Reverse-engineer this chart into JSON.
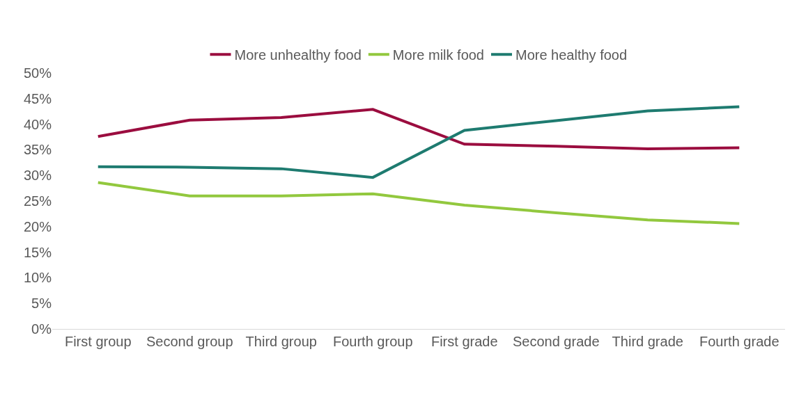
{
  "chart_data": {
    "type": "line",
    "categories": [
      "First group",
      "Second group",
      "Third group",
      "Fourth group",
      "First grade",
      "Second grade",
      "Third grade",
      "Fourth grade"
    ],
    "series": [
      {
        "name": "More unhealthy food",
        "color": "#9b0d3f",
        "values": [
          37.6,
          40.8,
          41.3,
          42.9,
          36.1,
          35.7,
          35.2,
          35.4
        ]
      },
      {
        "name": "More milk food",
        "color": "#92c83e",
        "values": [
          28.6,
          26.0,
          26.0,
          26.4,
          24.2,
          22.7,
          21.3,
          20.6
        ]
      },
      {
        "name": "More healthy food",
        "color": "#1e7b70",
        "values": [
          31.7,
          31.6,
          31.3,
          29.6,
          38.8,
          40.7,
          42.6,
          43.4
        ]
      }
    ],
    "ylim": [
      0,
      50
    ],
    "yticks": [
      {
        "value": 0,
        "label": "0%"
      },
      {
        "value": 5,
        "label": "5%"
      },
      {
        "value": 10,
        "label": "10%"
      },
      {
        "value": 15,
        "label": "15%"
      },
      {
        "value": 20,
        "label": "20%"
      },
      {
        "value": 25,
        "label": "25%"
      },
      {
        "value": 30,
        "label": "30%"
      },
      {
        "value": 35,
        "label": "35%"
      },
      {
        "value": 40,
        "label": "40%"
      },
      {
        "value": 45,
        "label": "45%"
      },
      {
        "value": 50,
        "label": "50%"
      }
    ],
    "grid": false,
    "legend": "top",
    "marker": "none",
    "line_style": "solid"
  }
}
